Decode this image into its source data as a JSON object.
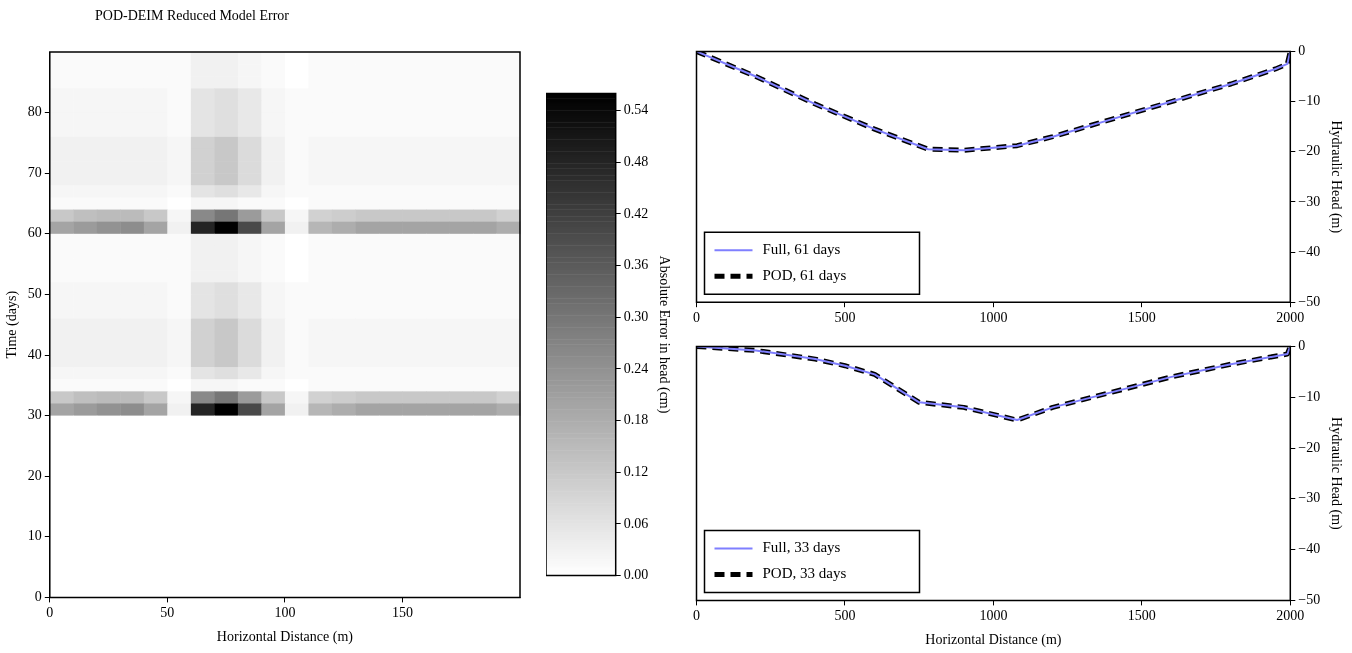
{
  "chart_data": [
    {
      "type": "heatmap",
      "title": "POD-DEIM Reduced Model Error",
      "xlabel": "Horizontal Distance (m)",
      "ylabel": "Time (days)",
      "clabel": "Absolute Error in head (cm)",
      "x": [
        5,
        15,
        25,
        35,
        45,
        55,
        65,
        75,
        85,
        95,
        105,
        115,
        125,
        135,
        145,
        155,
        165,
        175,
        185,
        195
      ],
      "xlim": [
        0,
        200
      ],
      "xticks": [
        0,
        50,
        100,
        150
      ],
      "ylim": [
        0,
        90
      ],
      "yticks": [
        0,
        10,
        20,
        30,
        40,
        50,
        60,
        70,
        80
      ],
      "clim": [
        0,
        0.56
      ],
      "cticks": [
        {
          "value": 0,
          "label": "0.00"
        },
        {
          "value": 0.06,
          "label": "0.06"
        },
        {
          "value": 0.12,
          "label": "0.12"
        },
        {
          "value": 0.18,
          "label": "0.18"
        },
        {
          "value": 0.24,
          "label": "0.24"
        },
        {
          "value": 0.3,
          "label": "0.30"
        },
        {
          "value": 0.36,
          "label": "0.36"
        },
        {
          "value": 0.42,
          "label": "0.42"
        },
        {
          "value": 0.48,
          "label": "0.48"
        },
        {
          "value": 0.54,
          "label": "0.54"
        }
      ],
      "cells": [
        [
          0.01,
          0.01,
          0.01,
          0.01,
          0.01,
          0.01,
          0.03,
          0.03,
          0.02,
          0.01,
          0,
          0.01,
          0.01,
          0.01,
          0.01,
          0.01,
          0.01,
          0.01,
          0.01,
          0.01
        ],
        [
          0.01,
          0.01,
          0.01,
          0.01,
          0.01,
          0.01,
          0.03,
          0.03,
          0.02,
          0.01,
          0,
          0.01,
          0.01,
          0.01,
          0.01,
          0.01,
          0.01,
          0.01,
          0.01,
          0.01
        ],
        [
          0.01,
          0.01,
          0.01,
          0.01,
          0.01,
          0.01,
          0.03,
          0.03,
          0.02,
          0.01,
          0,
          0.01,
          0.01,
          0.01,
          0.01,
          0.01,
          0.01,
          0.01,
          0.01,
          0.01
        ],
        [
          0.02,
          0.02,
          0.02,
          0.02,
          0.02,
          0.01,
          0.06,
          0.07,
          0.05,
          0.02,
          0.01,
          0.01,
          0.01,
          0.01,
          0.01,
          0.01,
          0.01,
          0.01,
          0.01,
          0.01
        ],
        [
          0.02,
          0.02,
          0.02,
          0.02,
          0.02,
          0.01,
          0.06,
          0.07,
          0.05,
          0.02,
          0.01,
          0.01,
          0.01,
          0.01,
          0.01,
          0.01,
          0.01,
          0.01,
          0.01,
          0.01
        ],
        [
          0.02,
          0.02,
          0.02,
          0.02,
          0.02,
          0.01,
          0.06,
          0.07,
          0.05,
          0.02,
          0.01,
          0.01,
          0.01,
          0.01,
          0.01,
          0.01,
          0.01,
          0.01,
          0.01,
          0.01
        ],
        [
          0.02,
          0.02,
          0.02,
          0.02,
          0.02,
          0.01,
          0.06,
          0.07,
          0.05,
          0.02,
          0.01,
          0.01,
          0.01,
          0.01,
          0.01,
          0.01,
          0.01,
          0.01,
          0.01,
          0.01
        ],
        [
          0.03,
          0.03,
          0.03,
          0.03,
          0.03,
          0.02,
          0.1,
          0.12,
          0.08,
          0.03,
          0.01,
          0.02,
          0.02,
          0.02,
          0.02,
          0.02,
          0.02,
          0.02,
          0.02,
          0.02
        ],
        [
          0.03,
          0.03,
          0.03,
          0.03,
          0.03,
          0.02,
          0.1,
          0.12,
          0.08,
          0.03,
          0.01,
          0.02,
          0.02,
          0.02,
          0.02,
          0.02,
          0.02,
          0.02,
          0.02,
          0.02
        ],
        [
          0.03,
          0.03,
          0.03,
          0.03,
          0.03,
          0.02,
          0.1,
          0.12,
          0.08,
          0.03,
          0.01,
          0.02,
          0.02,
          0.02,
          0.02,
          0.02,
          0.02,
          0.02,
          0.02,
          0.02
        ],
        [
          0.03,
          0.03,
          0.03,
          0.03,
          0.03,
          0.02,
          0.1,
          0.12,
          0.08,
          0.03,
          0.01,
          0.02,
          0.02,
          0.02,
          0.02,
          0.02,
          0.02,
          0.02,
          0.02,
          0.02
        ],
        [
          0.02,
          0.02,
          0.02,
          0.02,
          0.02,
          0.01,
          0.06,
          0.07,
          0.05,
          0.02,
          0.01,
          0.01,
          0.01,
          0.01,
          0.01,
          0.01,
          0.01,
          0.01,
          0.01,
          0.01
        ],
        [
          0.01,
          0.01,
          0.01,
          0.01,
          0.01,
          0,
          0.02,
          0.02,
          0.01,
          0.01,
          0,
          0.01,
          0.01,
          0.01,
          0.01,
          0.01,
          0.01,
          0.01,
          0.01,
          0.01
        ],
        [
          0.12,
          0.14,
          0.15,
          0.15,
          0.12,
          0.02,
          0.26,
          0.3,
          0.22,
          0.12,
          0.02,
          0.1,
          0.11,
          0.12,
          0.12,
          0.12,
          0.12,
          0.12,
          0.12,
          0.1
        ],
        [
          0.2,
          0.22,
          0.24,
          0.25,
          0.2,
          0.03,
          0.48,
          0.56,
          0.4,
          0.2,
          0.03,
          0.16,
          0.18,
          0.2,
          0.2,
          0.2,
          0.2,
          0.2,
          0.2,
          0.18
        ],
        [
          0.01,
          0.01,
          0.01,
          0.01,
          0.01,
          0.01,
          0.03,
          0.03,
          0.02,
          0.01,
          0,
          0.01,
          0.01,
          0.01,
          0.01,
          0.01,
          0.01,
          0.01,
          0.01,
          0.01
        ],
        [
          0.01,
          0.01,
          0.01,
          0.01,
          0.01,
          0.01,
          0.03,
          0.03,
          0.02,
          0.01,
          0,
          0.01,
          0.01,
          0.01,
          0.01,
          0.01,
          0.01,
          0.01,
          0.01,
          0.01
        ],
        [
          0.01,
          0.01,
          0.01,
          0.01,
          0.01,
          0.01,
          0.03,
          0.03,
          0.02,
          0.01,
          0,
          0.01,
          0.01,
          0.01,
          0.01,
          0.01,
          0.01,
          0.01,
          0.01,
          0.01
        ],
        [
          0.01,
          0.01,
          0.01,
          0.01,
          0.01,
          0.01,
          0.03,
          0.03,
          0.02,
          0.01,
          0,
          0.01,
          0.01,
          0.01,
          0.01,
          0.01,
          0.01,
          0.01,
          0.01,
          0.01
        ],
        [
          0.02,
          0.02,
          0.02,
          0.02,
          0.02,
          0.01,
          0.06,
          0.07,
          0.05,
          0.02,
          0.01,
          0.01,
          0.01,
          0.01,
          0.01,
          0.01,
          0.01,
          0.01,
          0.01,
          0.01
        ],
        [
          0.02,
          0.02,
          0.02,
          0.02,
          0.02,
          0.01,
          0.06,
          0.07,
          0.05,
          0.02,
          0.01,
          0.01,
          0.01,
          0.01,
          0.01,
          0.01,
          0.01,
          0.01,
          0.01,
          0.01
        ],
        [
          0.02,
          0.02,
          0.02,
          0.02,
          0.02,
          0.01,
          0.06,
          0.07,
          0.05,
          0.02,
          0.01,
          0.01,
          0.01,
          0.01,
          0.01,
          0.01,
          0.01,
          0.01,
          0.01,
          0.01
        ],
        [
          0.03,
          0.03,
          0.03,
          0.03,
          0.03,
          0.02,
          0.1,
          0.12,
          0.08,
          0.03,
          0.01,
          0.02,
          0.02,
          0.02,
          0.02,
          0.02,
          0.02,
          0.02,
          0.02,
          0.02
        ],
        [
          0.03,
          0.03,
          0.03,
          0.03,
          0.03,
          0.02,
          0.1,
          0.12,
          0.08,
          0.03,
          0.01,
          0.02,
          0.02,
          0.02,
          0.02,
          0.02,
          0.02,
          0.02,
          0.02,
          0.02
        ],
        [
          0.03,
          0.03,
          0.03,
          0.03,
          0.03,
          0.02,
          0.1,
          0.12,
          0.08,
          0.03,
          0.01,
          0.02,
          0.02,
          0.02,
          0.02,
          0.02,
          0.02,
          0.02,
          0.02,
          0.02
        ],
        [
          0.03,
          0.03,
          0.03,
          0.03,
          0.03,
          0.02,
          0.1,
          0.12,
          0.08,
          0.03,
          0.01,
          0.02,
          0.02,
          0.02,
          0.02,
          0.02,
          0.02,
          0.02,
          0.02,
          0.02
        ],
        [
          0.02,
          0.02,
          0.02,
          0.02,
          0.02,
          0.01,
          0.06,
          0.07,
          0.05,
          0.02,
          0.01,
          0.01,
          0.01,
          0.01,
          0.01,
          0.01,
          0.01,
          0.01,
          0.01,
          0.01
        ],
        [
          0.01,
          0.01,
          0.01,
          0.01,
          0.01,
          0,
          0.02,
          0.02,
          0.01,
          0.01,
          0,
          0.01,
          0.01,
          0.01,
          0.01,
          0.01,
          0.01,
          0.01,
          0.01,
          0.01
        ],
        [
          0.12,
          0.14,
          0.15,
          0.15,
          0.12,
          0.02,
          0.26,
          0.3,
          0.22,
          0.12,
          0.02,
          0.1,
          0.11,
          0.12,
          0.12,
          0.12,
          0.12,
          0.12,
          0.12,
          0.1
        ],
        [
          0.2,
          0.22,
          0.24,
          0.25,
          0.2,
          0.03,
          0.48,
          0.56,
          0.4,
          0.2,
          0.03,
          0.16,
          0.18,
          0.2,
          0.2,
          0.2,
          0.2,
          0.2,
          0.2,
          0.18
        ],
        [
          0,
          0,
          0,
          0,
          0,
          0,
          0,
          0,
          0,
          0,
          0,
          0,
          0,
          0,
          0,
          0,
          0,
          0,
          0,
          0
        ],
        [
          0,
          0,
          0,
          0,
          0,
          0,
          0,
          0,
          0,
          0,
          0,
          0,
          0,
          0,
          0,
          0,
          0,
          0,
          0,
          0
        ],
        [
          0,
          0,
          0,
          0,
          0,
          0,
          0,
          0,
          0,
          0,
          0,
          0,
          0,
          0,
          0,
          0,
          0,
          0,
          0,
          0
        ],
        [
          0,
          0,
          0,
          0,
          0,
          0,
          0,
          0,
          0,
          0,
          0,
          0,
          0,
          0,
          0,
          0,
          0,
          0,
          0,
          0
        ],
        [
          0,
          0,
          0,
          0,
          0,
          0,
          0,
          0,
          0,
          0,
          0,
          0,
          0,
          0,
          0,
          0,
          0,
          0,
          0,
          0
        ],
        [
          0,
          0,
          0,
          0,
          0,
          0,
          0,
          0,
          0,
          0,
          0,
          0,
          0,
          0,
          0,
          0,
          0,
          0,
          0,
          0
        ],
        [
          0,
          0,
          0,
          0,
          0,
          0,
          0,
          0,
          0,
          0,
          0,
          0,
          0,
          0,
          0,
          0,
          0,
          0,
          0,
          0
        ],
        [
          0,
          0,
          0,
          0,
          0,
          0,
          0,
          0,
          0,
          0,
          0,
          0,
          0,
          0,
          0,
          0,
          0,
          0,
          0,
          0
        ],
        [
          0,
          0,
          0,
          0,
          0,
          0,
          0,
          0,
          0,
          0,
          0,
          0,
          0,
          0,
          0,
          0,
          0,
          0,
          0,
          0
        ],
        [
          0,
          0,
          0,
          0,
          0,
          0,
          0,
          0,
          0,
          0,
          0,
          0,
          0,
          0,
          0,
          0,
          0,
          0,
          0,
          0
        ],
        [
          0,
          0,
          0,
          0,
          0,
          0,
          0,
          0,
          0,
          0,
          0,
          0,
          0,
          0,
          0,
          0,
          0,
          0,
          0,
          0
        ],
        [
          0,
          0,
          0,
          0,
          0,
          0,
          0,
          0,
          0,
          0,
          0,
          0,
          0,
          0,
          0,
          0,
          0,
          0,
          0,
          0
        ],
        [
          0,
          0,
          0,
          0,
          0,
          0,
          0,
          0,
          0,
          0,
          0,
          0,
          0,
          0,
          0,
          0,
          0,
          0,
          0,
          0
        ],
        [
          0,
          0,
          0,
          0,
          0,
          0,
          0,
          0,
          0,
          0,
          0,
          0,
          0,
          0,
          0,
          0,
          0,
          0,
          0,
          0
        ],
        [
          0,
          0,
          0,
          0,
          0,
          0,
          0,
          0,
          0,
          0,
          0,
          0,
          0,
          0,
          0,
          0,
          0,
          0,
          0,
          0
        ]
      ]
    },
    {
      "type": "line",
      "ylabel": "Hydraulic Head (m)",
      "xlim": [
        0,
        2000
      ],
      "xticks": [
        0,
        500,
        1000,
        1500,
        2000
      ],
      "ylim": [
        -50,
        0
      ],
      "yticks": [
        {
          "value": 0,
          "label": "0"
        },
        {
          "value": -10,
          "label": "−10"
        },
        {
          "value": -20,
          "label": "−20"
        },
        {
          "value": -30,
          "label": "−30"
        },
        {
          "value": -40,
          "label": "−40"
        },
        {
          "value": -50,
          "label": "−50"
        }
      ],
      "legend": "bottom left",
      "marker": "none",
      "x": [
        0,
        200,
        400,
        600,
        780,
        900,
        1080,
        1200,
        1400,
        1600,
        1800,
        1950,
        1990,
        2000
      ],
      "series": [
        {
          "name": "Full, 61 days",
          "color": "#7f7fff",
          "line_style": "solid",
          "values": [
            0,
            -5,
            -10.5,
            -15.5,
            -19.5,
            -19.7,
            -18.8,
            -17,
            -13.5,
            -10,
            -6.5,
            -3.5,
            -2.5,
            0
          ]
        },
        {
          "name": "POD, 61 days",
          "color": "#000000",
          "line_style": "dashed",
          "values": [
            0,
            -5,
            -10.5,
            -15.5,
            -19.5,
            -19.7,
            -18.8,
            -17,
            -13.5,
            -10,
            -6.5,
            -3.5,
            -2.5,
            0
          ]
        }
      ]
    },
    {
      "type": "line",
      "xlabel": "Horizontal Distance (m)",
      "ylabel": "Hydraulic Head (m)",
      "xlim": [
        0,
        2000
      ],
      "xticks": [
        0,
        500,
        1000,
        1500,
        2000
      ],
      "ylim": [
        -50,
        0
      ],
      "yticks": [
        {
          "value": 0,
          "label": "0"
        },
        {
          "value": -10,
          "label": "−10"
        },
        {
          "value": -20,
          "label": "−20"
        },
        {
          "value": -30,
          "label": "−30"
        },
        {
          "value": -40,
          "label": "−40"
        },
        {
          "value": -50,
          "label": "−50"
        }
      ],
      "legend": "bottom left",
      "marker": "none",
      "x": [
        0,
        200,
        400,
        500,
        600,
        750,
        900,
        1080,
        1200,
        1400,
        1600,
        1800,
        1990,
        2000
      ],
      "series": [
        {
          "name": "Full, 33 days",
          "color": "#7f7fff",
          "line_style": "solid",
          "values": [
            0,
            -0.8,
            -2.5,
            -3.8,
            -5.5,
            -11,
            -12,
            -14.5,
            -12,
            -9,
            -6,
            -3.5,
            -1.5,
            0
          ]
        },
        {
          "name": "POD, 33 days",
          "color": "#000000",
          "line_style": "dashed",
          "values": [
            0,
            -0.8,
            -2.5,
            -3.8,
            -5.5,
            -11,
            -12,
            -14.5,
            -12,
            -9,
            -6,
            -3.5,
            -1.5,
            0
          ]
        }
      ]
    }
  ]
}
